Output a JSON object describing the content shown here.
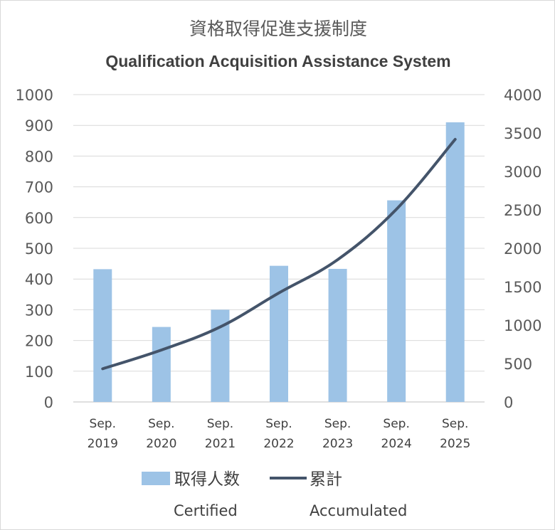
{
  "chart_data": {
    "type": "bar",
    "title": "資格取得促進支援制度",
    "subtitle": "Qualification Acquisition Assistance System",
    "categories": [
      [
        "Sep.",
        "2019"
      ],
      [
        "Sep.",
        "2020"
      ],
      [
        "Sep.",
        "2021"
      ],
      [
        "Sep.",
        "2022"
      ],
      [
        "Sep.",
        "2023"
      ],
      [
        "Sep.",
        "2024"
      ],
      [
        "Sep.",
        "2025"
      ]
    ],
    "series": [
      {
        "name": "取得人数",
        "sublabel": "Certified",
        "type": "bar",
        "axis": "left",
        "values": [
          432,
          244,
          300,
          443,
          433,
          656,
          910
        ],
        "color": "#9dc3e6"
      },
      {
        "name": "累計",
        "sublabel": "Accumulated",
        "type": "line",
        "axis": "right",
        "values": [
          432,
          676,
          976,
          1419,
          1852,
          2508,
          3418
        ],
        "color": "#44546a"
      }
    ],
    "ylim": [
      0,
      1000
    ],
    "yticks": [
      "0",
      "100",
      "200",
      "300",
      "400",
      "500",
      "600",
      "700",
      "800",
      "900",
      "1000"
    ],
    "y2lim": [
      0,
      4000
    ],
    "y2ticks": [
      "0",
      "500",
      "1000",
      "1500",
      "2000",
      "2500",
      "3000",
      "3500",
      "4000"
    ],
    "grid": true,
    "legend": "bottom"
  }
}
